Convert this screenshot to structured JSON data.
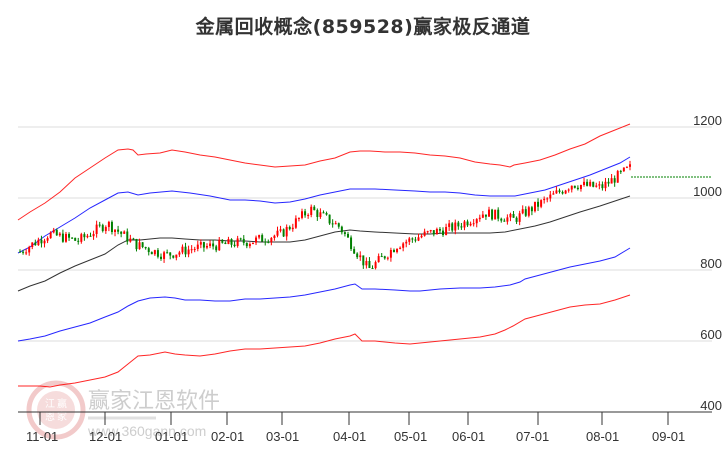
{
  "title": "金属回收概念(859528)赢家极反通道",
  "watermark": {
    "brand": "赢家江恩软件",
    "url": "www.360gann.com",
    "seal_chars": [
      "江",
      "赢",
      "恩",
      "家"
    ]
  },
  "colors": {
    "up_candle": "#ff0000",
    "down_candle": "#008000",
    "outer_band": "#ff0000",
    "inner_band": "#0000ff",
    "middle_line": "#000000",
    "last_price_line": "#008000",
    "grid": "#dddddd"
  },
  "chart_data": {
    "type": "candlestick_with_channels",
    "title": "金属回收概念(859528)赢家极反通道",
    "xlabel": "",
    "ylabel": "",
    "ylim": [
      400,
      1250
    ],
    "y_ticks": [
      400,
      600,
      800,
      1000,
      1200
    ],
    "x_ticks": [
      "11-01",
      "12-01",
      "01-01",
      "02-01",
      "03-01",
      "04-01",
      "05-01",
      "06-01",
      "07-01",
      "08-01",
      "09-01"
    ],
    "grid": "horizontal",
    "legend": "none",
    "last_price": 1058,
    "x": [
      "10-25",
      "11-01",
      "11-15",
      "12-01",
      "12-15",
      "01-01",
      "01-15",
      "02-01",
      "02-15",
      "03-01",
      "03-15",
      "04-01",
      "04-08",
      "04-15",
      "05-01",
      "05-15",
      "06-01",
      "06-15",
      "07-01",
      "07-15",
      "08-01",
      "08-15"
    ],
    "series": [
      {
        "name": "upper_outer_band",
        "color": "red",
        "values": [
          940,
          990,
          1060,
          1135,
          1130,
          1125,
          1115,
          1105,
          1100,
          1095,
          1110,
          1135,
          1130,
          1128,
          1125,
          1120,
          1115,
          1100,
          1120,
          1150,
          1180,
          1215
        ]
      },
      {
        "name": "upper_inner_band",
        "color": "blue",
        "values": [
          845,
          890,
          960,
          1025,
          1020,
          1025,
          1020,
          1010,
          1000,
          985,
          1000,
          1025,
          1023,
          1020,
          1020,
          1015,
          1010,
          1005,
          1015,
          1045,
          1075,
          1110
        ]
      },
      {
        "name": "middle_line",
        "color": "black",
        "values": [
          740,
          775,
          820,
          860,
          888,
          890,
          885,
          880,
          880,
          875,
          878,
          902,
          895,
          890,
          885,
          880,
          878,
          872,
          895,
          935,
          970,
          1005
        ]
      },
      {
        "name": "lower_inner_band",
        "color": "blue",
        "values": [
          600,
          615,
          640,
          680,
          715,
          720,
          715,
          718,
          722,
          720,
          730,
          755,
          745,
          744,
          742,
          745,
          750,
          755,
          780,
          810,
          830,
          855
        ]
      },
      {
        "name": "lower_outer_band",
        "color": "red",
        "values": [
          470,
          470,
          490,
          530,
          570,
          565,
          570,
          580,
          585,
          588,
          600,
          625,
          600,
          595,
          595,
          600,
          620,
          640,
          670,
          700,
          715,
          730
        ]
      },
      {
        "name": "close_price",
        "color": "candles",
        "values": [
          850,
          900,
          880,
          930,
          870,
          840,
          860,
          870,
          880,
          900,
          970,
          920,
          800,
          870,
          900,
          920,
          960,
          940,
          990,
          1040,
          1030,
          1085
        ]
      }
    ]
  }
}
